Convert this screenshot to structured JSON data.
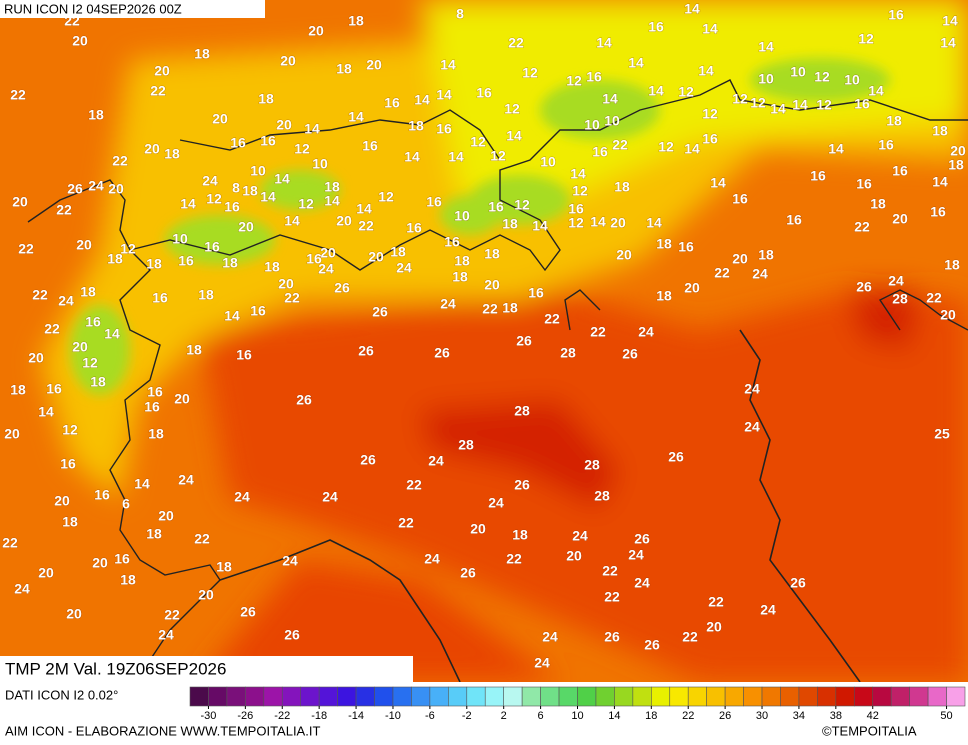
{
  "header": {
    "run": "RUN ICON I2 04SEP2026 00Z"
  },
  "map": {
    "labels": [
      22,
      20,
      22,
      18,
      22,
      20,
      18,
      20,
      20,
      18,
      18,
      20,
      18,
      20,
      20,
      18,
      22,
      26,
      24,
      20,
      20,
      22,
      22,
      20,
      18,
      22,
      24,
      18,
      22,
      16,
      20,
      14,
      20,
      12,
      18,
      16,
      18,
      14,
      12,
      20,
      16,
      20,
      16,
      18,
      16,
      20,
      16,
      14,
      24,
      18,
      6,
      20,
      18,
      22,
      20,
      20,
      16,
      22,
      18,
      24,
      20,
      20,
      18,
      22,
      24,
      26,
      26,
      24,
      24,
      24,
      22,
      24,
      26,
      20,
      22,
      18,
      20,
      24,
      22,
      26,
      24,
      24,
      22,
      24,
      26,
      24,
      26,
      22,
      22,
      20,
      24,
      26,
      26,
      28,
      28,
      26,
      24,
      28,
      28,
      24,
      22,
      26,
      26,
      26,
      26,
      26,
      24,
      22,
      18,
      26,
      22,
      28,
      22,
      24,
      26,
      24,
      24,
      25,
      26,
      28,
      22,
      20,
      24,
      18,
      22,
      20,
      16,
      18,
      16,
      18,
      20,
      24,
      22,
      20,
      18,
      16,
      18,
      20,
      20,
      14,
      14,
      12,
      14,
      18,
      16,
      12,
      10,
      16,
      18,
      18,
      18,
      20,
      16,
      24,
      20,
      18,
      20,
      24,
      26,
      22,
      18,
      20,
      16,
      14,
      18,
      16,
      18,
      16,
      24,
      16,
      20,
      16,
      18,
      10,
      12,
      18,
      14,
      16,
      20,
      22,
      16,
      16,
      12,
      14,
      14,
      18,
      12,
      14,
      18,
      8,
      12,
      14,
      16,
      10,
      14,
      10,
      12,
      14,
      16,
      20,
      16,
      16,
      14,
      14,
      12,
      12,
      14,
      16,
      18,
      14,
      14,
      16,
      16,
      12,
      14,
      10,
      14,
      12,
      16,
      18,
      16,
      22,
      10,
      10,
      14,
      12,
      16,
      14,
      14,
      12,
      14,
      16,
      12,
      12,
      14,
      12,
      10,
      10,
      12,
      10,
      14,
      16,
      12,
      14,
      14,
      12,
      14,
      16,
      18,
      16,
      18,
      20,
      18,
      14,
      16,
      16,
      16,
      14,
      14,
      14,
      14,
      16,
      14,
      12,
      22,
      8,
      14,
      12,
      14,
      14,
      16
    ],
    "caption": "TMP 2M Val. 19Z06SEP2026"
  },
  "footer": {
    "source": "DATI ICON I2 0.02°",
    "credit": "AIM ICON - ELABORAZIONE WWW.TEMPOITALIA.IT",
    "brand": "©TEMPOITALIA"
  },
  "colorbar": {
    "lim": [
      -32,
      52
    ],
    "ticks": [
      -30,
      -26,
      -22,
      -18,
      -14,
      -10,
      -6,
      -2,
      2,
      6,
      10,
      14,
      18,
      22,
      26,
      30,
      34,
      38,
      42,
      50
    ],
    "colors": [
      "#4b0a4b",
      "#660a66",
      "#7a107a",
      "#8c108c",
      "#9c14a8",
      "#8414bc",
      "#6c14cc",
      "#5414d8",
      "#3c14e0",
      "#2830e4",
      "#2050ec",
      "#2870f0",
      "#3890f4",
      "#48b0f8",
      "#58ccf8",
      "#70e4f8",
      "#98f4f8",
      "#b8f8f0",
      "#90e8a8",
      "#70e088",
      "#58d868",
      "#50d048",
      "#70d030",
      "#98d820",
      "#c0e010",
      "#e8f000",
      "#f8e800",
      "#f8d400",
      "#f8c000",
      "#f8a800",
      "#f89000",
      "#f07800",
      "#e86000",
      "#e04800",
      "#d83000",
      "#d01800",
      "#c80818",
      "#b80840",
      "#c02068",
      "#d03890",
      "#e868c8",
      "#f8a0e8"
    ]
  }
}
